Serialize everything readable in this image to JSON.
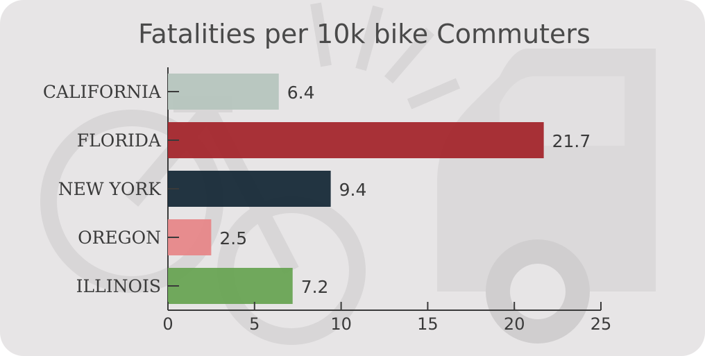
{
  "chart_data": {
    "type": "bar",
    "orientation": "horizontal",
    "title": "Fatalities per 10k bike Commuters",
    "xlabel": "",
    "ylabel": "",
    "categories": [
      "CALIFORNIA",
      "FLORIDA",
      "NEW YORK",
      "OREGON",
      "ILLINOIS"
    ],
    "values": [
      6.4,
      21.7,
      9.4,
      2.5,
      7.2
    ],
    "value_labels": [
      "6.4",
      "21.7",
      "9.4",
      "2.5",
      "7.2"
    ],
    "bar_colors": [
      "#b7c5be",
      "#a52a31",
      "#1b2d3b",
      "#e6888a",
      "#6ba557"
    ],
    "xlim": [
      0,
      25
    ],
    "xticks": [
      0,
      5,
      10,
      15,
      20,
      25
    ],
    "xtick_labels": [
      "0",
      "5",
      "10",
      "15",
      "20",
      "25"
    ],
    "grid": false,
    "background_color": "#e7e5e6",
    "background_illustration": "faint bicycle and truck silhouettes",
    "legend": "none"
  }
}
